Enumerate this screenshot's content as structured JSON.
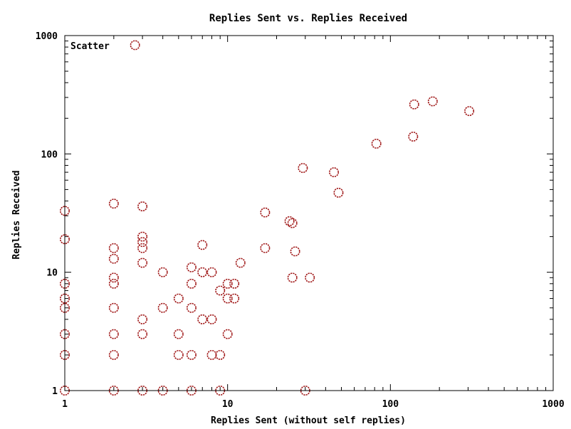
{
  "chart_data": {
    "type": "scatter",
    "title": "Replies Sent vs. Replies Received",
    "xlabel": "Replies Sent (without self replies)",
    "ylabel": "Replies Received",
    "x_scale": "log",
    "y_scale": "log",
    "xlim": [
      1,
      1000
    ],
    "ylim": [
      1,
      1000
    ],
    "x_ticks": [
      "1",
      "10",
      "100",
      "1000"
    ],
    "y_ticks": [
      "1",
      "10",
      "100",
      "1000"
    ],
    "grid": false,
    "legend_position": "top-left",
    "marker_color": "#a01818",
    "series": [
      {
        "name": "Scatter",
        "points": [
          {
            "x": 1,
            "y": 1
          },
          {
            "x": 1,
            "y": 2
          },
          {
            "x": 1,
            "y": 3
          },
          {
            "x": 1,
            "y": 5
          },
          {
            "x": 1,
            "y": 6
          },
          {
            "x": 1,
            "y": 8
          },
          {
            "x": 1,
            "y": 19
          },
          {
            "x": 1,
            "y": 33
          },
          {
            "x": 2,
            "y": 1
          },
          {
            "x": 2,
            "y": 2
          },
          {
            "x": 2,
            "y": 3
          },
          {
            "x": 2,
            "y": 5
          },
          {
            "x": 2,
            "y": 8
          },
          {
            "x": 2,
            "y": 9
          },
          {
            "x": 2,
            "y": 13
          },
          {
            "x": 2,
            "y": 16
          },
          {
            "x": 2,
            "y": 38
          },
          {
            "x": 2.7,
            "y": 830
          },
          {
            "x": 3,
            "y": 1
          },
          {
            "x": 3,
            "y": 3
          },
          {
            "x": 3,
            "y": 4
          },
          {
            "x": 3,
            "y": 12
          },
          {
            "x": 3,
            "y": 16
          },
          {
            "x": 3,
            "y": 18
          },
          {
            "x": 3,
            "y": 20
          },
          {
            "x": 3,
            "y": 36
          },
          {
            "x": 4,
            "y": 1
          },
          {
            "x": 4,
            "y": 5
          },
          {
            "x": 4,
            "y": 10
          },
          {
            "x": 5,
            "y": 2
          },
          {
            "x": 5,
            "y": 3
          },
          {
            "x": 5,
            "y": 6
          },
          {
            "x": 6,
            "y": 1
          },
          {
            "x": 6,
            "y": 2
          },
          {
            "x": 6,
            "y": 5
          },
          {
            "x": 6,
            "y": 8
          },
          {
            "x": 6,
            "y": 11
          },
          {
            "x": 7,
            "y": 4
          },
          {
            "x": 7,
            "y": 10
          },
          {
            "x": 7,
            "y": 17
          },
          {
            "x": 8,
            "y": 2
          },
          {
            "x": 8,
            "y": 4
          },
          {
            "x": 8,
            "y": 10
          },
          {
            "x": 9,
            "y": 1
          },
          {
            "x": 9,
            "y": 2
          },
          {
            "x": 9,
            "y": 7
          },
          {
            "x": 10,
            "y": 3
          },
          {
            "x": 10,
            "y": 6
          },
          {
            "x": 10,
            "y": 8
          },
          {
            "x": 11,
            "y": 6
          },
          {
            "x": 11,
            "y": 8
          },
          {
            "x": 12,
            "y": 12
          },
          {
            "x": 17,
            "y": 16
          },
          {
            "x": 17,
            "y": 32
          },
          {
            "x": 24,
            "y": 27
          },
          {
            "x": 25,
            "y": 9
          },
          {
            "x": 25,
            "y": 26
          },
          {
            "x": 26,
            "y": 15
          },
          {
            "x": 29,
            "y": 76
          },
          {
            "x": 30,
            "y": 1
          },
          {
            "x": 32,
            "y": 9
          },
          {
            "x": 45,
            "y": 70
          },
          {
            "x": 48,
            "y": 47
          },
          {
            "x": 82,
            "y": 122
          },
          {
            "x": 138,
            "y": 140
          },
          {
            "x": 140,
            "y": 262
          },
          {
            "x": 182,
            "y": 278
          },
          {
            "x": 305,
            "y": 230
          }
        ]
      }
    ]
  }
}
